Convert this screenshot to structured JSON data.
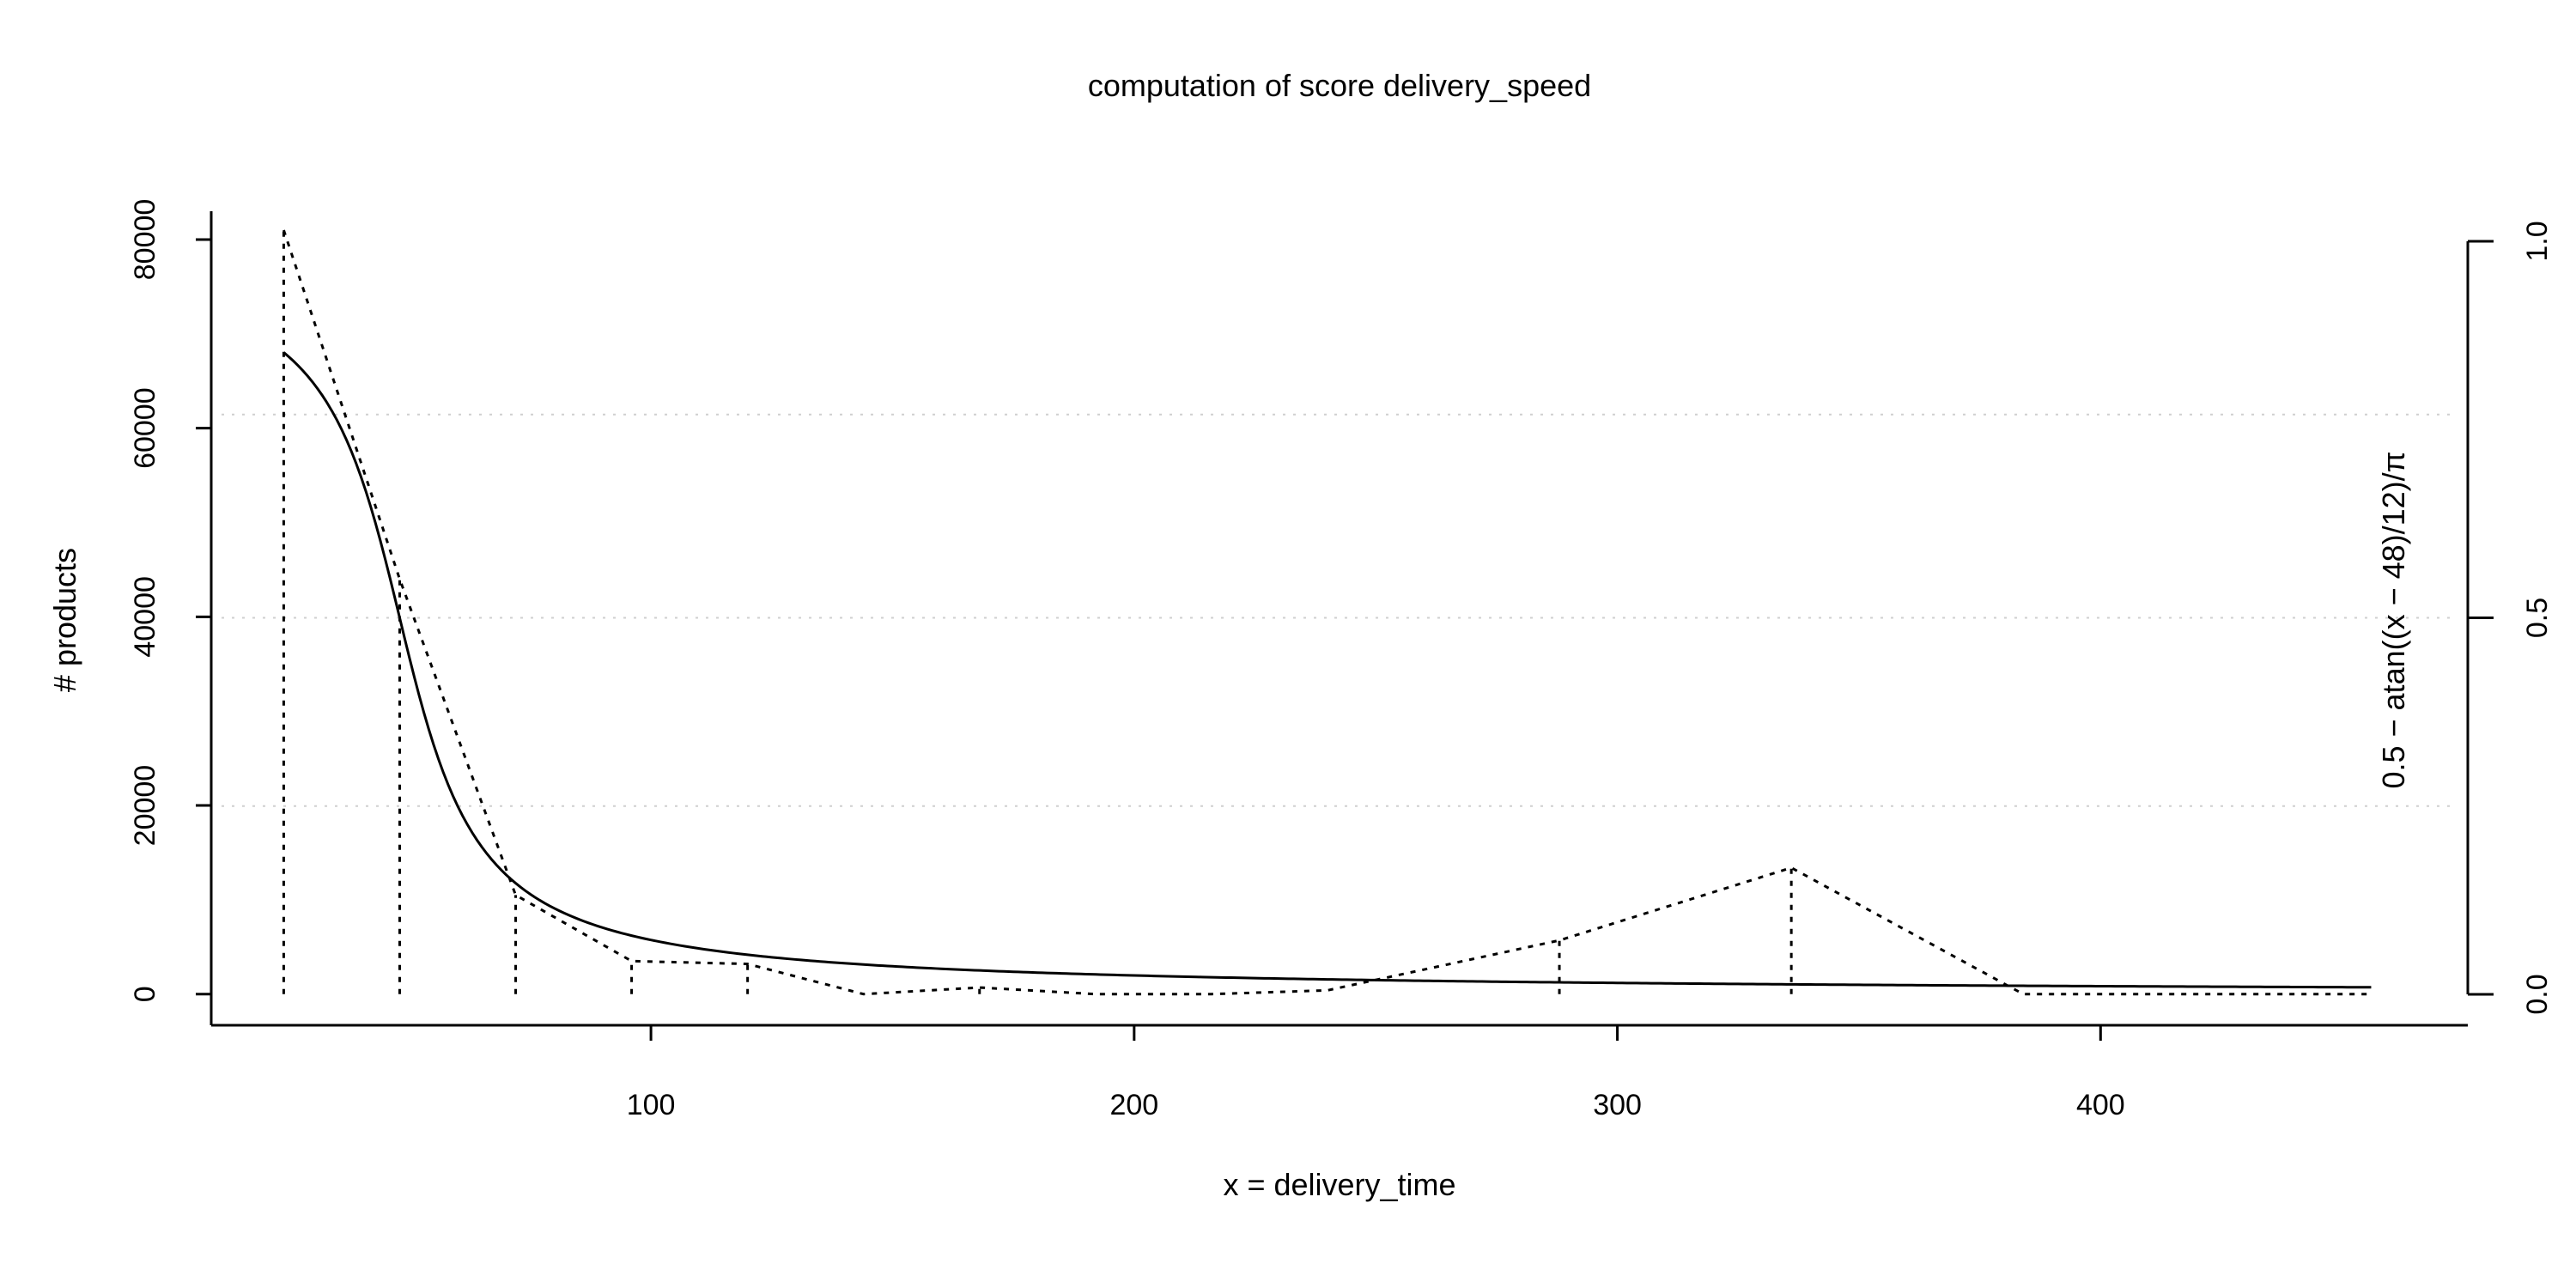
{
  "chart_data": {
    "type": "line",
    "title": "computation of score delivery_speed",
    "xlabel": "x = delivery_time",
    "ylabel": "# products",
    "ylabel_right": "0.5 − atan((x − 48)/12)/π",
    "xlim": [
      9,
      476
    ],
    "ylim": [
      -3300,
      83000
    ],
    "ylim_right": [
      0,
      1
    ],
    "x_ticks": [
      100,
      200,
      300,
      400
    ],
    "x_tick_labels": [
      "100",
      "200",
      "300",
      "400"
    ],
    "y_ticks": [
      0,
      20000,
      40000,
      60000,
      80000
    ],
    "y_tick_labels": [
      "0",
      "20000",
      "40000",
      "60000",
      "80000"
    ],
    "y_right_ticks": [
      0,
      0.5,
      1
    ],
    "y_right_tick_labels": [
      "0.0",
      "0.5",
      "1.0"
    ],
    "grid_right": [
      0.25,
      0.5,
      0.77
    ],
    "series": [
      {
        "style": "dashed",
        "x": [
          24,
          48,
          72,
          96,
          120,
          144,
          168,
          192,
          216,
          240,
          288,
          336,
          384,
          456
        ],
        "values": [
          81000,
          44000,
          10500,
          3500,
          3200,
          0,
          700,
          0,
          0,
          400,
          5700,
          13400,
          0,
          0
        ],
        "drop_lines_at": [
          24,
          48,
          72,
          96,
          120,
          168,
          288,
          336
        ]
      },
      {
        "style": "solid",
        "axis": "right",
        "formula": "0.5-atan((x-48)/12)/pi",
        "x_range": [
          24,
          456
        ]
      }
    ]
  }
}
